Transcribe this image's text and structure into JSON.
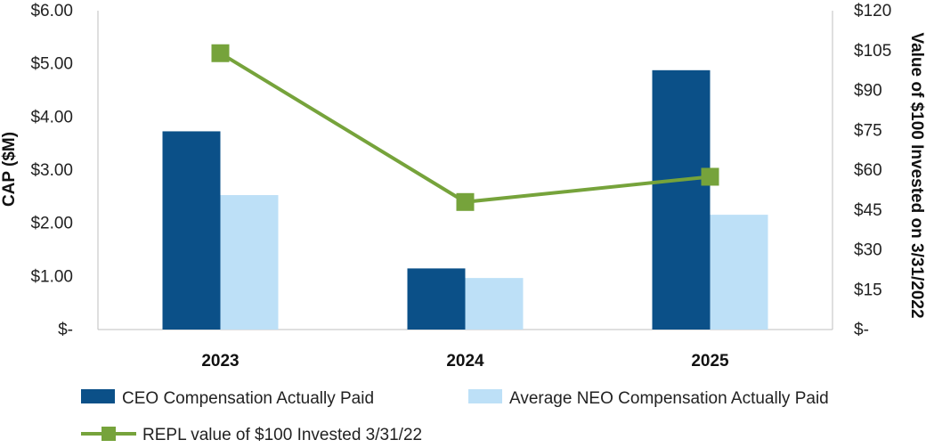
{
  "chart_data": {
    "type": "bar",
    "categories": [
      "2023",
      "2024",
      "2025"
    ],
    "series": [
      {
        "name": "CEO Compensation Actually Paid",
        "axis": "left",
        "kind": "bar",
        "color": "#0b5088",
        "values": [
          3.73,
          1.15,
          4.88
        ]
      },
      {
        "name": "Average NEO Compensation Actually Paid",
        "axis": "left",
        "kind": "bar",
        "color": "#bde0f7",
        "values": [
          2.53,
          0.97,
          2.16
        ]
      },
      {
        "name": "REPL value of $100 Invested 3/31/22",
        "axis": "right",
        "kind": "line",
        "color": "#76a33b",
        "values": [
          104,
          48,
          57.5
        ]
      }
    ],
    "ylabel": "CAP ($M)",
    "y2label": "Value of $100 Invested on 3/31/2022",
    "ylim": [
      0,
      6
    ],
    "y2lim": [
      0,
      120
    ],
    "yticks": [
      "$-",
      "$1.00",
      "$2.00",
      "$3.00",
      "$4.00",
      "$5.00",
      "$6.00"
    ],
    "y2ticks": [
      "$-",
      "$15",
      "$30",
      "$45",
      "$60",
      "$75",
      "$90",
      "$105",
      "$120"
    ],
    "grid": false,
    "legend_position": "bottom"
  }
}
